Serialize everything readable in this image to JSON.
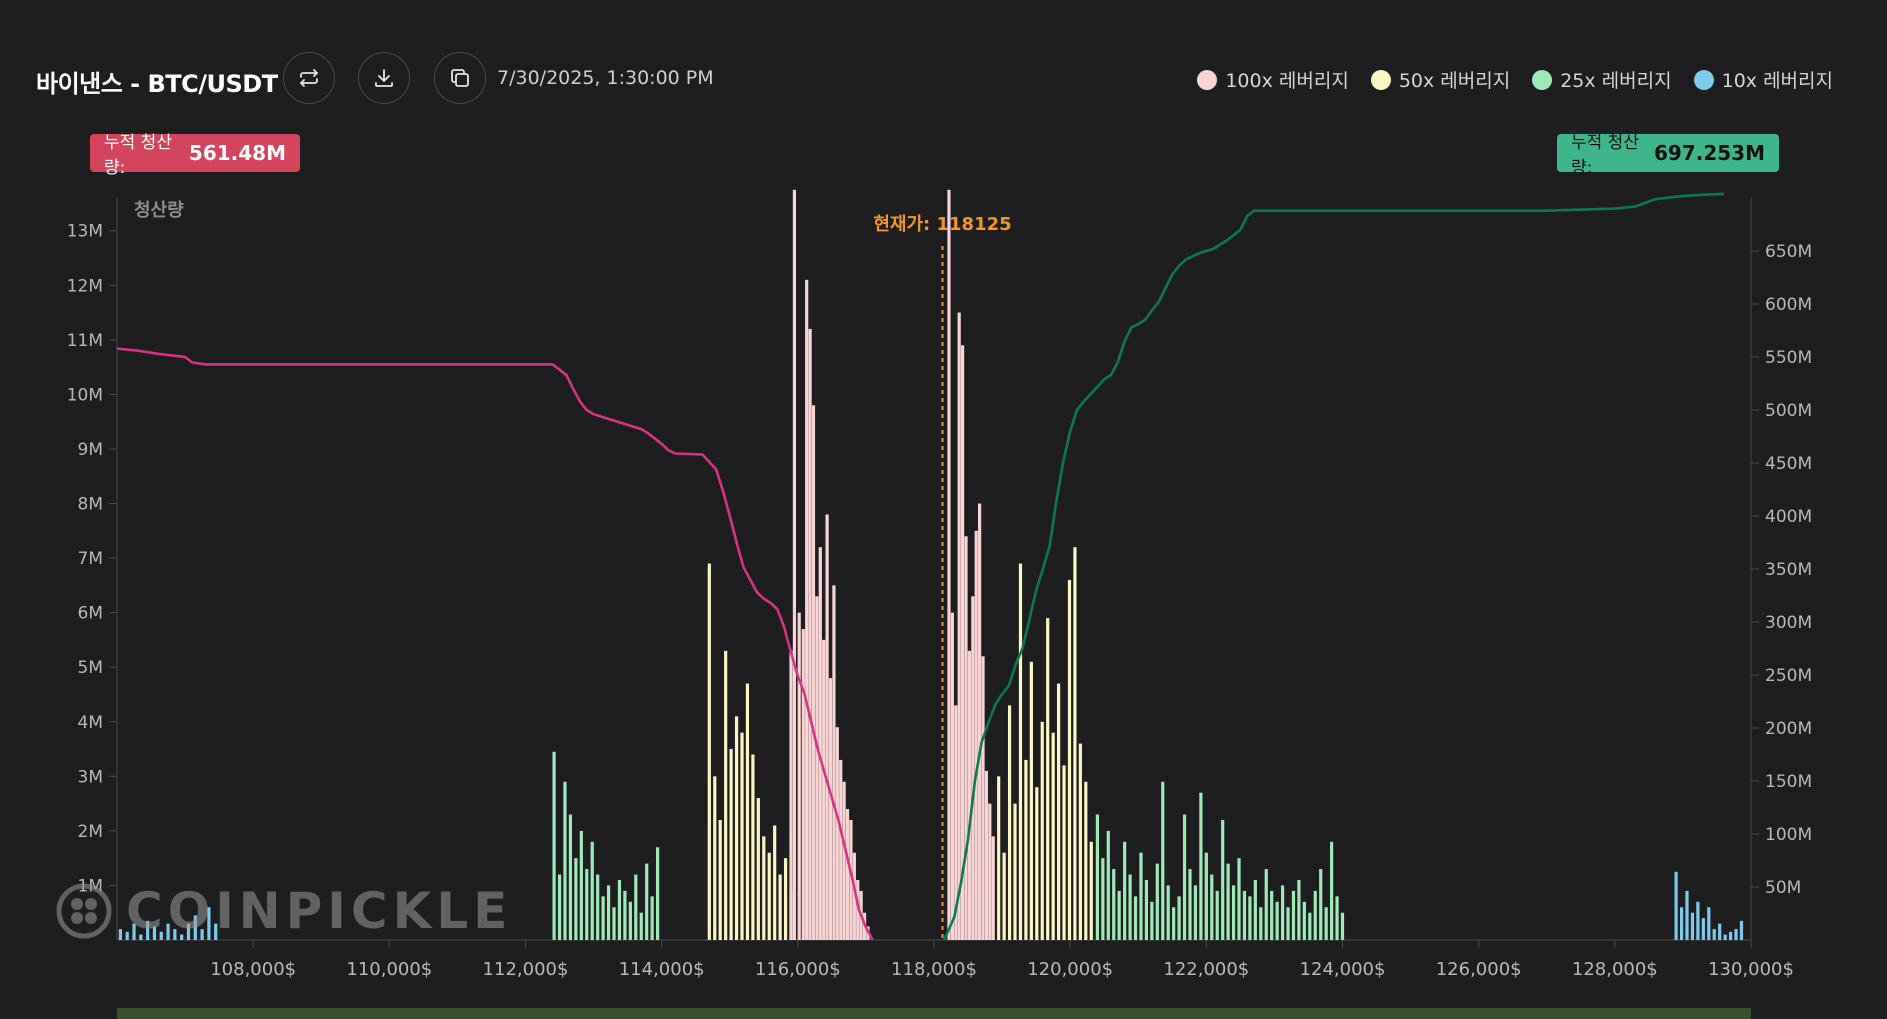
{
  "header": {
    "title": "바이낸스 - BTC/USDT",
    "timestamp": "7/30/2025, 1:30:00 PM",
    "buttons": {
      "refresh_icon": "swap-arrows-icon",
      "download_icon": "download-icon",
      "copy_icon": "copy-icon"
    }
  },
  "legend": [
    {
      "label": "100x 레버리지",
      "color": "#f8d4d4"
    },
    {
      "label": "50x 레버리지",
      "color": "#fbf4c4"
    },
    {
      "label": "25x 레버리지",
      "color": "#9fe8b8"
    },
    {
      "label": "10x 레버리지",
      "color": "#7dcbea"
    }
  ],
  "badges": {
    "left": {
      "label": "누적 청산량:",
      "value": "561.48M",
      "color": "#d2455c"
    },
    "right": {
      "label": "누적 청산량:",
      "value": "697.253M",
      "color": "#3fb58b"
    }
  },
  "watermark": "COINPICKLE",
  "chart_data": {
    "type": "bar",
    "y_left_label": "청산량",
    "current_price_label": "현재가: 118125",
    "current_price": 118125,
    "x_range": [
      106000,
      130000
    ],
    "x_ticks": [
      108000,
      110000,
      112000,
      114000,
      116000,
      118000,
      120000,
      122000,
      124000,
      126000,
      128000,
      130000
    ],
    "x_tick_labels": [
      "108,000$",
      "110,000$",
      "112,000$",
      "114,000$",
      "116,000$",
      "118,000$",
      "120,000$",
      "122,000$",
      "124,000$",
      "126,000$",
      "128,000$",
      "130,000$"
    ],
    "y_left_range": [
      0,
      13.6
    ],
    "y_left_ticks": [
      1,
      2,
      3,
      4,
      5,
      6,
      7,
      8,
      9,
      10,
      11,
      12,
      13
    ],
    "y_left_tick_labels": [
      "1M",
      "2M",
      "3M",
      "4M",
      "5M",
      "6M",
      "7M",
      "8M",
      "9M",
      "10M",
      "11M",
      "12M",
      "13M"
    ],
    "y_right_range": [
      0,
      700
    ],
    "y_right_ticks": [
      50,
      100,
      150,
      200,
      250,
      300,
      350,
      400,
      450,
      500,
      550,
      600,
      650
    ],
    "y_right_tick_labels": [
      "50M",
      "100M",
      "150M",
      "200M",
      "250M",
      "300M",
      "350M",
      "400M",
      "450M",
      "500M",
      "550M",
      "600M",
      "650M"
    ],
    "series_colors": {
      "100x": "#f8d4d4",
      "50x": "#fbf4c4",
      "25x": "#9fe8b8",
      "10x": "#7dcbea",
      "cum_short": "#d6338a",
      "cum_long": "#0c7a4f",
      "price_line": "#f0962a"
    },
    "bars": [
      {
        "lev": "10x",
        "points": [
          [
            106050,
            0.2
          ],
          [
            106150,
            0.15
          ],
          [
            106250,
            0.3
          ],
          [
            106350,
            0.1
          ],
          [
            106450,
            0.35
          ],
          [
            106550,
            0.25
          ],
          [
            106650,
            0.15
          ],
          [
            106750,
            0.3
          ],
          [
            106850,
            0.2
          ],
          [
            106950,
            0.1
          ],
          [
            107050,
            0.3
          ],
          [
            107150,
            0.45
          ],
          [
            107250,
            0.2
          ],
          [
            107350,
            0.6
          ],
          [
            107450,
            0.3
          ]
        ]
      },
      {
        "lev": "25x",
        "points": [
          [
            112420,
            3.45
          ],
          [
            112500,
            1.2
          ],
          [
            112580,
            2.9
          ],
          [
            112660,
            2.3
          ],
          [
            112740,
            1.5
          ],
          [
            112820,
            2.0
          ],
          [
            112900,
            1.3
          ],
          [
            112980,
            1.8
          ],
          [
            113060,
            1.2
          ],
          [
            113140,
            0.8
          ],
          [
            113220,
            1.0
          ],
          [
            113300,
            0.6
          ],
          [
            113380,
            1.1
          ],
          [
            113460,
            0.9
          ],
          [
            113540,
            0.7
          ],
          [
            113620,
            1.2
          ],
          [
            113700,
            0.5
          ],
          [
            113780,
            1.4
          ],
          [
            113860,
            0.8
          ],
          [
            113940,
            1.7
          ]
        ]
      },
      {
        "lev": "50x",
        "points": [
          [
            114700,
            6.9
          ],
          [
            114780,
            3.0
          ],
          [
            114860,
            2.2
          ],
          [
            114940,
            5.3
          ],
          [
            115020,
            3.5
          ],
          [
            115100,
            4.1
          ],
          [
            115180,
            3.8
          ],
          [
            115260,
            4.7
          ],
          [
            115340,
            3.4
          ],
          [
            115420,
            2.6
          ],
          [
            115500,
            1.9
          ],
          [
            115580,
            1.6
          ],
          [
            115660,
            2.1
          ],
          [
            115740,
            1.2
          ],
          [
            115820,
            1.5
          ],
          [
            115900,
            0.9
          ]
        ]
      },
      {
        "lev": "100x",
        "points": [
          [
            115900,
            5.3
          ],
          [
            115950,
            13.75
          ],
          [
            116020,
            6.0
          ],
          [
            116080,
            5.7
          ],
          [
            116130,
            12.1
          ],
          [
            116180,
            11.2
          ],
          [
            116230,
            9.8
          ],
          [
            116280,
            6.3
          ],
          [
            116330,
            7.2
          ],
          [
            116380,
            5.5
          ],
          [
            116430,
            7.8
          ],
          [
            116480,
            4.8
          ],
          [
            116530,
            6.5
          ],
          [
            116580,
            3.9
          ],
          [
            116630,
            3.3
          ],
          [
            116680,
            2.9
          ],
          [
            116730,
            2.4
          ],
          [
            116780,
            2.2
          ],
          [
            116830,
            1.6
          ],
          [
            116880,
            1.1
          ],
          [
            116930,
            0.9
          ],
          [
            116980,
            0.5
          ],
          [
            117030,
            0.25
          ]
        ]
      },
      {
        "lev": "100x",
        "points": [
          [
            118220,
            13.75
          ],
          [
            118270,
            6.0
          ],
          [
            118320,
            4.3
          ],
          [
            118370,
            11.5
          ],
          [
            118420,
            10.9
          ],
          [
            118470,
            7.4
          ],
          [
            118520,
            5.3
          ],
          [
            118570,
            6.3
          ],
          [
            118620,
            7.5
          ],
          [
            118670,
            8.0
          ],
          [
            118720,
            5.2
          ],
          [
            118770,
            3.1
          ],
          [
            118820,
            2.5
          ],
          [
            118870,
            1.9
          ]
        ]
      },
      {
        "lev": "50x",
        "points": [
          [
            118950,
            3.0
          ],
          [
            119030,
            1.6
          ],
          [
            119110,
            4.3
          ],
          [
            119190,
            2.5
          ],
          [
            119270,
            6.9
          ],
          [
            119350,
            3.3
          ],
          [
            119430,
            5.1
          ],
          [
            119510,
            2.8
          ],
          [
            119590,
            4.0
          ],
          [
            119670,
            5.9
          ],
          [
            119750,
            3.8
          ],
          [
            119830,
            4.7
          ],
          [
            119910,
            3.2
          ],
          [
            119990,
            6.6
          ],
          [
            120070,
            7.2
          ],
          [
            120150,
            3.6
          ],
          [
            120230,
            2.9
          ],
          [
            120310,
            1.8
          ]
        ]
      },
      {
        "lev": "25x",
        "points": [
          [
            120400,
            2.3
          ],
          [
            120480,
            1.5
          ],
          [
            120560,
            2.0
          ],
          [
            120640,
            1.3
          ],
          [
            120720,
            0.9
          ],
          [
            120800,
            1.8
          ],
          [
            120880,
            1.2
          ],
          [
            120960,
            0.8
          ],
          [
            121040,
            1.6
          ],
          [
            121120,
            1.1
          ],
          [
            121200,
            0.7
          ],
          [
            121280,
            1.4
          ],
          [
            121360,
            2.9
          ],
          [
            121440,
            1.0
          ],
          [
            121520,
            0.6
          ],
          [
            121600,
            0.8
          ],
          [
            121680,
            2.3
          ],
          [
            121760,
            1.3
          ],
          [
            121840,
            1.0
          ],
          [
            121920,
            2.7
          ],
          [
            122000,
            1.6
          ],
          [
            122080,
            1.2
          ],
          [
            122160,
            0.9
          ],
          [
            122240,
            2.2
          ],
          [
            122320,
            1.4
          ],
          [
            122400,
            1.0
          ],
          [
            122480,
            1.5
          ],
          [
            122560,
            0.9
          ],
          [
            122640,
            0.8
          ],
          [
            122720,
            1.1
          ],
          [
            122800,
            0.6
          ],
          [
            122880,
            1.3
          ],
          [
            122960,
            0.9
          ],
          [
            123040,
            0.7
          ],
          [
            123120,
            1.0
          ],
          [
            123200,
            0.6
          ],
          [
            123280,
            0.9
          ],
          [
            123360,
            1.1
          ],
          [
            123440,
            0.7
          ],
          [
            123520,
            0.5
          ],
          [
            123600,
            0.9
          ],
          [
            123680,
            1.3
          ],
          [
            123760,
            0.6
          ],
          [
            123840,
            1.8
          ],
          [
            123920,
            0.8
          ],
          [
            124000,
            0.5
          ]
        ]
      },
      {
        "lev": "10x",
        "points": [
          [
            128900,
            1.25
          ],
          [
            128980,
            0.6
          ],
          [
            129060,
            0.9
          ],
          [
            129140,
            0.5
          ],
          [
            129220,
            0.7
          ],
          [
            129300,
            0.4
          ],
          [
            129380,
            0.6
          ],
          [
            129460,
            0.2
          ],
          [
            129540,
            0.3
          ],
          [
            129620,
            0.1
          ],
          [
            129700,
            0.15
          ],
          [
            129780,
            0.2
          ],
          [
            129860,
            0.35
          ]
        ]
      }
    ],
    "cumulative_short": {
      "name": "",
      "points": [
        [
          106000,
          558
        ],
        [
          106300,
          556
        ],
        [
          106600,
          553
        ],
        [
          107000,
          550
        ],
        [
          107100,
          545
        ],
        [
          107300,
          543
        ],
        [
          108000,
          543
        ],
        [
          110000,
          543
        ],
        [
          112000,
          543
        ],
        [
          112400,
          543
        ],
        [
          112500,
          538
        ],
        [
          112600,
          533
        ],
        [
          112700,
          520
        ],
        [
          112800,
          508
        ],
        [
          112900,
          500
        ],
        [
          113000,
          496
        ],
        [
          113300,
          490
        ],
        [
          113700,
          482
        ],
        [
          113800,
          478
        ],
        [
          114000,
          468
        ],
        [
          114100,
          462
        ],
        [
          114200,
          459
        ],
        [
          114600,
          458
        ],
        [
          114800,
          444
        ],
        [
          114900,
          424
        ],
        [
          115000,
          400
        ],
        [
          115100,
          375
        ],
        [
          115200,
          352
        ],
        [
          115300,
          340
        ],
        [
          115400,
          328
        ],
        [
          115500,
          322
        ],
        [
          115600,
          318
        ],
        [
          115700,
          312
        ],
        [
          115800,
          295
        ],
        [
          115900,
          271
        ],
        [
          116000,
          249
        ],
        [
          116100,
          232
        ],
        [
          116200,
          205
        ],
        [
          116300,
          178
        ],
        [
          116400,
          156
        ],
        [
          116500,
          134
        ],
        [
          116600,
          112
        ],
        [
          116700,
          85
        ],
        [
          116800,
          58
        ],
        [
          116900,
          28
        ],
        [
          117000,
          12
        ],
        [
          117100,
          0
        ]
      ]
    },
    "cumulative_long": {
      "name": "",
      "points": [
        [
          118150,
          0
        ],
        [
          118300,
          22
        ],
        [
          118400,
          55
        ],
        [
          118500,
          95
        ],
        [
          118600,
          150
        ],
        [
          118700,
          187
        ],
        [
          118800,
          205
        ],
        [
          118900,
          222
        ],
        [
          119000,
          232
        ],
        [
          119100,
          240
        ],
        [
          119200,
          260
        ],
        [
          119300,
          275
        ],
        [
          119400,
          302
        ],
        [
          119500,
          330
        ],
        [
          119600,
          350
        ],
        [
          119700,
          372
        ],
        [
          119800,
          415
        ],
        [
          119900,
          452
        ],
        [
          120000,
          480
        ],
        [
          120100,
          500
        ],
        [
          120200,
          508
        ],
        [
          120300,
          515
        ],
        [
          120400,
          522
        ],
        [
          120500,
          529
        ],
        [
          120600,
          533
        ],
        [
          120700,
          545
        ],
        [
          120800,
          565
        ],
        [
          120900,
          578
        ],
        [
          121000,
          581
        ],
        [
          121100,
          585
        ],
        [
          121200,
          594
        ],
        [
          121300,
          602
        ],
        [
          121400,
          615
        ],
        [
          121500,
          628
        ],
        [
          121600,
          636
        ],
        [
          121700,
          642
        ],
        [
          121900,
          648
        ],
        [
          122100,
          652
        ],
        [
          122300,
          660
        ],
        [
          122500,
          670
        ],
        [
          122600,
          683
        ],
        [
          122700,
          688
        ],
        [
          123000,
          688
        ],
        [
          125000,
          688
        ],
        [
          127000,
          688
        ],
        [
          128000,
          690
        ],
        [
          128300,
          692
        ],
        [
          128600,
          699
        ],
        [
          129000,
          702
        ],
        [
          129300,
          703
        ],
        [
          129600,
          704
        ]
      ]
    }
  }
}
